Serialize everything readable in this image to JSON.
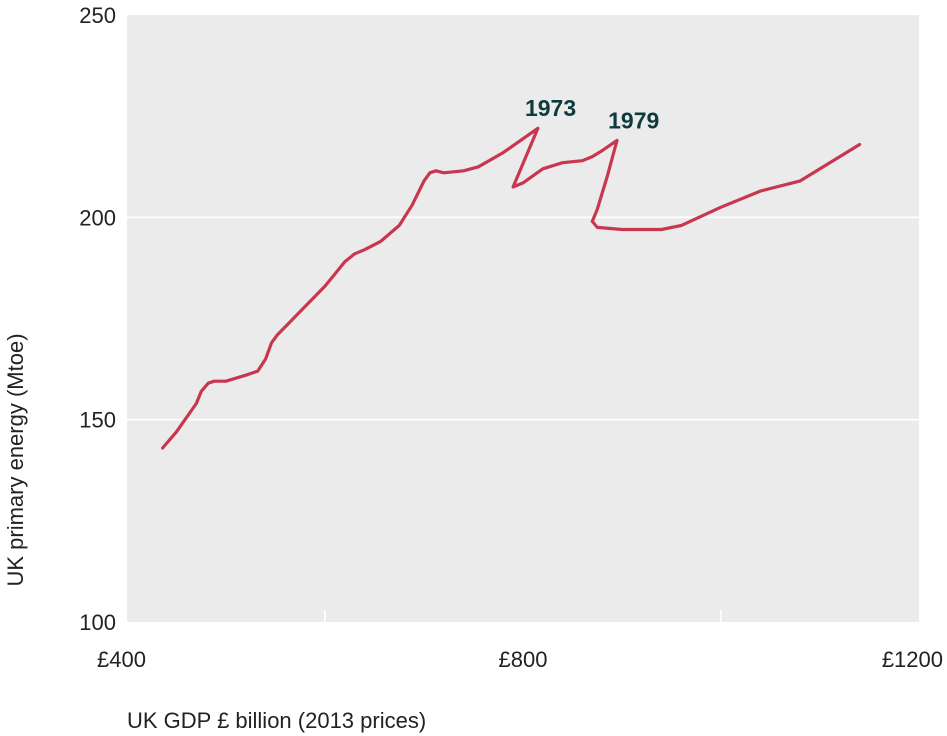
{
  "chart_data": {
    "type": "line",
    "title": "",
    "xlabel": "UK GDP £ billion (2013 prices)",
    "ylabel": "UK primary energy (Mtoe)",
    "xlim": [
      400,
      1200
    ],
    "ylim": [
      100,
      250
    ],
    "x_ticks": [
      {
        "value": 400,
        "label": "£400"
      },
      {
        "value": 800,
        "label": "£800"
      },
      {
        "value": 1200,
        "label": "£1200"
      }
    ],
    "x_minor_ticks": [
      600,
      1000
    ],
    "y_ticks": [
      {
        "value": 100,
        "label": "100"
      },
      {
        "value": 150,
        "label": "150"
      },
      {
        "value": 200,
        "label": "200"
      },
      {
        "value": 250,
        "label": "250"
      }
    ],
    "grid": true,
    "background": "#ebebeb",
    "series": [
      {
        "color": "#c8364f",
        "x": [
          436,
          450,
          470,
          475,
          482,
          488,
          500,
          520,
          532,
          540,
          546,
          552,
          562,
          580,
          600,
          610,
          620,
          625,
          630,
          640,
          656,
          675,
          688,
          700,
          706,
          712,
          720,
          740,
          755,
          780,
          815,
          790,
          800,
          820,
          840,
          860,
          870,
          880,
          895,
          885,
          875,
          870,
          875,
          900,
          940,
          960,
          1000,
          1040,
          1080,
          1140
        ],
        "y": [
          143,
          147,
          154,
          157,
          159,
          159.5,
          159.5,
          161,
          162,
          165,
          169,
          171,
          173.5,
          178,
          183,
          186,
          189,
          190,
          191,
          192,
          194,
          198,
          203,
          209,
          211,
          211.5,
          211,
          211.5,
          212.5,
          216,
          222,
          207.5,
          208.5,
          212,
          213.5,
          214,
          215,
          216.5,
          219,
          210,
          202,
          199,
          197.5,
          197,
          197,
          198,
          202.5,
          206.5,
          209,
          218
        ]
      }
    ],
    "annotations": [
      {
        "text": "1973",
        "x": 802,
        "y": 225
      },
      {
        "text": "1979",
        "x": 886,
        "y": 222
      }
    ]
  }
}
